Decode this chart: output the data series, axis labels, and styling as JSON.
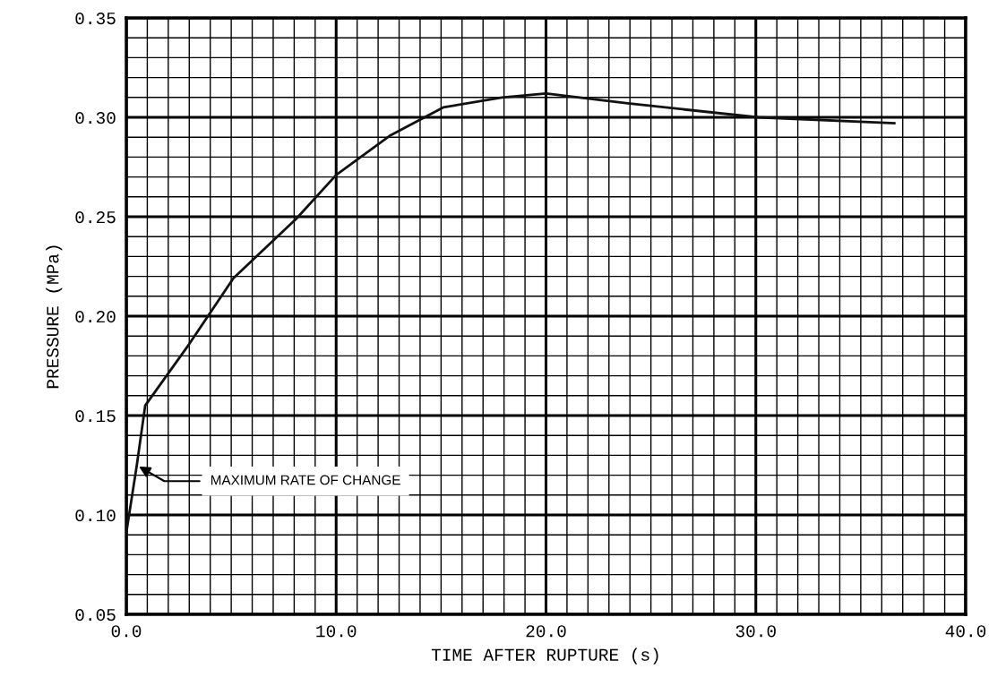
{
  "chart_data": {
    "type": "line",
    "xlabel": "TIME AFTER RUPTURE (s)",
    "ylabel": "PRESSURE (MPa)",
    "x": [
      0,
      0.5,
      0.9,
      3,
      5.1,
      8.1,
      10,
      12.6,
      15.1,
      17.9,
      20,
      23.9,
      30.1,
      36.6
    ],
    "series": [
      {
        "color": "#111111",
        "values": [
          0.091,
          0.125,
          0.155,
          0.186,
          0.219,
          0.249,
          0.271,
          0.291,
          0.305,
          0.31,
          0.312,
          0.307,
          0.3,
          0.297
        ]
      }
    ],
    "xlim": [
      0,
      40
    ],
    "ylim": [
      0.05,
      0.35
    ],
    "xticks": [
      {
        "value": 0,
        "label": "0.0"
      },
      {
        "value": 10,
        "label": "10.0"
      },
      {
        "value": 20,
        "label": "20.0"
      },
      {
        "value": 30,
        "label": "30.0"
      },
      {
        "value": 40,
        "label": "40.0"
      }
    ],
    "yticks": [
      {
        "value": 0.05,
        "label": "0.05"
      },
      {
        "value": 0.1,
        "label": "0.10"
      },
      {
        "value": 0.15,
        "label": "0.15"
      },
      {
        "value": 0.2,
        "label": "0.20"
      },
      {
        "value": 0.25,
        "label": "0.25"
      },
      {
        "value": 0.3,
        "label": "0.30"
      },
      {
        "value": 0.35,
        "label": "0.35"
      }
    ],
    "grid": true,
    "marker": "none",
    "line_style": "solid",
    "annotations": [
      {
        "text": "MAXIMUM RATE OF CHANGE",
        "x": 0.5,
        "y": 0.125
      }
    ]
  }
}
